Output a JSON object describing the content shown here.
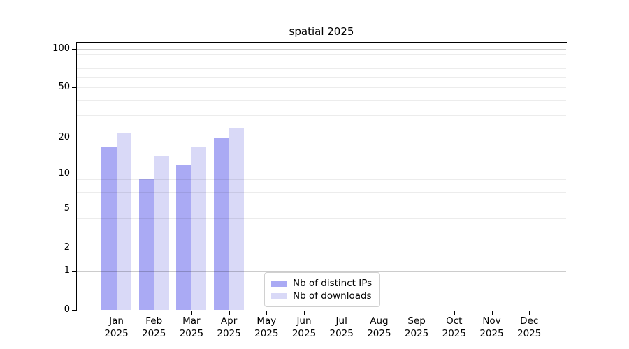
{
  "title": "spatial 2025",
  "legend": {
    "items": [
      {
        "label": "Nb of distinct IPs",
        "color": "#aaaaf4"
      },
      {
        "label": "Nb of downloads",
        "color": "#d9d9f7"
      }
    ]
  },
  "chart_data": {
    "type": "bar",
    "title": "spatial 2025",
    "categories": [
      "Jan 2025",
      "Feb 2025",
      "Mar 2025",
      "Apr 2025",
      "May 2025",
      "Jun 2025",
      "Jul 2025",
      "Aug 2025",
      "Sep 2025",
      "Oct 2025",
      "Nov 2025",
      "Dec 2025"
    ],
    "series": [
      {
        "name": "Nb of distinct IPs",
        "color": "#aaaaf4",
        "values": [
          17,
          9,
          12,
          20,
          0,
          0,
          0,
          0,
          0,
          0,
          0,
          0
        ]
      },
      {
        "name": "Nb of downloads",
        "color": "#d9d9f7",
        "values": [
          22,
          14,
          17,
          24,
          0,
          0,
          0,
          0,
          0,
          0,
          0,
          0
        ]
      }
    ],
    "xlabel": "",
    "ylabel": "",
    "y_axis": {
      "scale": "log1p",
      "range": [
        0,
        100
      ],
      "ticks": [
        0,
        1,
        2,
        5,
        10,
        20,
        50,
        100
      ],
      "major_gridlines": [
        1,
        10,
        100
      ],
      "minor_gridlines": [
        2,
        3,
        4,
        5,
        6,
        7,
        8,
        9,
        20,
        30,
        40,
        50,
        60,
        70,
        80,
        90
      ]
    },
    "grid": true,
    "legend_position": "lower center"
  }
}
